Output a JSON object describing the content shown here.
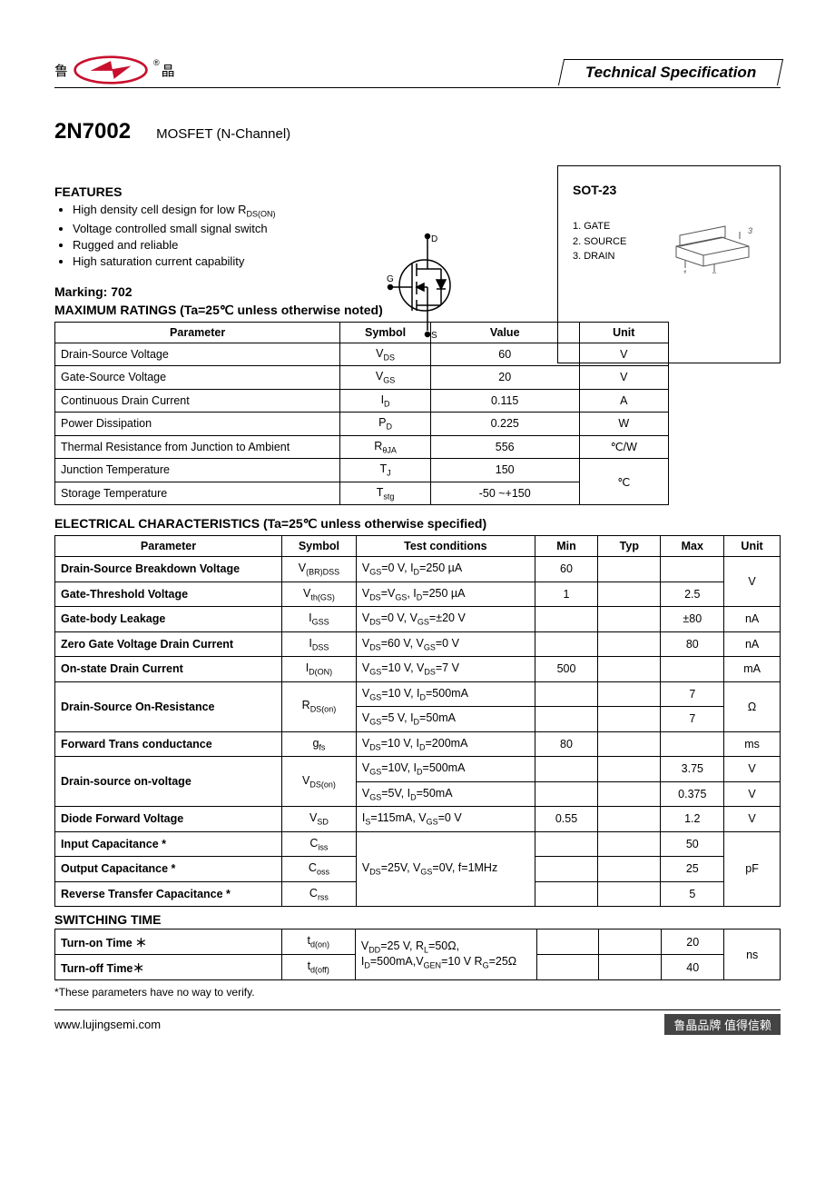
{
  "header": {
    "logo_left_char": "鲁",
    "logo_right_char": "晶",
    "tech_spec": "Technical Specification"
  },
  "title": {
    "part": "2N7002",
    "desc": "MOSFET (N-Channel)"
  },
  "features": {
    "heading": "FEATURES",
    "items": [
      "High density cell design for low R",
      "Voltage controlled small signal switch",
      "Rugged and reliable",
      "High saturation current capability"
    ],
    "item0_sub": "DS(ON)"
  },
  "marking": "Marking: 702",
  "package_box": {
    "title": "SOT-23",
    "pins": [
      "1. GATE",
      "2. SOURCE",
      "3. DRAIN"
    ]
  },
  "max_ratings": {
    "heading": "MAXIMUM RATINGS (Ta=25℃ unless otherwise noted)",
    "columns": [
      "Parameter",
      "Symbol",
      "Value",
      "Unit"
    ],
    "rows": [
      {
        "p": "Drain-Source Voltage",
        "s": "V",
        "sub": "DS",
        "v": "60",
        "u": "V"
      },
      {
        "p": "Gate-Source Voltage",
        "s": "V",
        "sub": "GS",
        "v": "20",
        "u": "V"
      },
      {
        "p": "Continuous Drain Current",
        "s": "I",
        "sub": "D",
        "v": "0.115",
        "u": "A"
      },
      {
        "p": "Power Dissipation",
        "s": "P",
        "sub": "D",
        "v": "0.225",
        "u": "W"
      },
      {
        "p": "Thermal Resistance from Junction to Ambient",
        "s": "R",
        "sub": "θJA",
        "v": "556",
        "u": "℃/W"
      },
      {
        "p": "Junction Temperature",
        "s": "T",
        "sub": "J",
        "v": "150",
        "u": "℃",
        "u_rowspan": 2
      },
      {
        "p": "Storage Temperature",
        "s": "T",
        "sub": "stg",
        "v": "-50 ~+150"
      }
    ]
  },
  "ec": {
    "heading": "ELECTRICAL CHARACTERISTICS (Ta=25℃ unless otherwise specified)",
    "columns": [
      "Parameter",
      "Symbol",
      "Test    conditions",
      "Min",
      "Typ",
      "Max",
      "Unit"
    ],
    "rows": [
      {
        "p": "Drain-Source Breakdown Voltage",
        "s": "V(BR)DSS",
        "c": "VGS=0 V, ID=250 µA",
        "min": "60",
        "max": "",
        "u": "V",
        "u_rowspan": 2,
        "bold": true
      },
      {
        "p": "Gate-Threshold Voltage",
        "s": "Vth(GS)",
        "c": "VDS=VGS, ID=250 µA",
        "min": "1",
        "max": "2.5",
        "bold": true
      },
      {
        "p": "Gate-body Leakage",
        "s": "IGSS",
        "c": "VDS=0 V, VGS=±20 V",
        "min": "",
        "max": "±80",
        "u": "nA",
        "bold": true
      },
      {
        "p": "Zero Gate Voltage Drain Current",
        "s": "IDSS",
        "c": "VDS=60 V, VGS=0 V",
        "min": "",
        "max": "80",
        "u": "nA",
        "bold": true
      },
      {
        "p": "On-state Drain Current",
        "s": "ID(ON)",
        "c": "VGS=10 V, VDS=7 V",
        "min": "500",
        "max": "",
        "u": "mA",
        "bold": true
      },
      {
        "p": "Drain-Source On-Resistance",
        "p_rowspan": 2,
        "s": "RDS(on)",
        "s_rowspan": 2,
        "c": "VGS=10 V, ID=500mA",
        "min": "",
        "max": "7",
        "u": "Ω",
        "u_rowspan": 2,
        "bold": true
      },
      {
        "c": "VGS=5 V, ID=50mA",
        "min": "",
        "max": "7"
      },
      {
        "p": "Forward Trans conductance",
        "s": "gfs",
        "c": "VDS=10 V, ID=200mA",
        "min": "80",
        "max": "",
        "u": "ms",
        "bold": true
      },
      {
        "p": "Drain-source on-voltage",
        "p_rowspan": 2,
        "s": "VDS(on)",
        "s_rowspan": 2,
        "c": "VGS=10V, ID=500mA",
        "min": "",
        "max": "3.75",
        "u": "V",
        "bold": true
      },
      {
        "c": "VGS=5V, ID=50mA",
        "min": "",
        "max": "0.375",
        "u": "V"
      },
      {
        "p": "Diode Forward Voltage",
        "s": "VSD",
        "c": "IS=115mA, VGS=0 V",
        "min": "0.55",
        "max": "1.2",
        "u": "V",
        "bold": true
      },
      {
        "p": "Input Capacitance *",
        "s": "Ciss",
        "c": "VDS=25V, VGS=0V, f=1MHz",
        "c_rowspan": 3,
        "min": "",
        "max": "50",
        "u": "pF",
        "u_rowspan": 3,
        "bold": true
      },
      {
        "p": "Output Capacitance *",
        "s": "Coss",
        "min": "",
        "max": "25",
        "bold": true
      },
      {
        "p": "Reverse Transfer Capacitance *",
        "s": "Crss",
        "min": "",
        "max": "5",
        "bold": true
      }
    ]
  },
  "switching": {
    "heading": "SWITCHING TIME",
    "rows": [
      {
        "p": "Turn-on Time ＊",
        "s": "td(on)",
        "c": "VDD=25 V, RL=50Ω, ID=500mA,VGEN=10 V RG=25Ω",
        "c_rowspan": 2,
        "min": "",
        "max": "20",
        "u": "ns",
        "u_rowspan": 2,
        "bold": true
      },
      {
        "p": "Turn-off Time＊",
        "s": "td(off)",
        "min": "",
        "max": "40",
        "bold": true
      }
    ]
  },
  "note": "*These parameters have no way to verify.",
  "footer": {
    "url": "www.lujingsemi.com",
    "right": "鲁晶品牌  值得信赖"
  }
}
